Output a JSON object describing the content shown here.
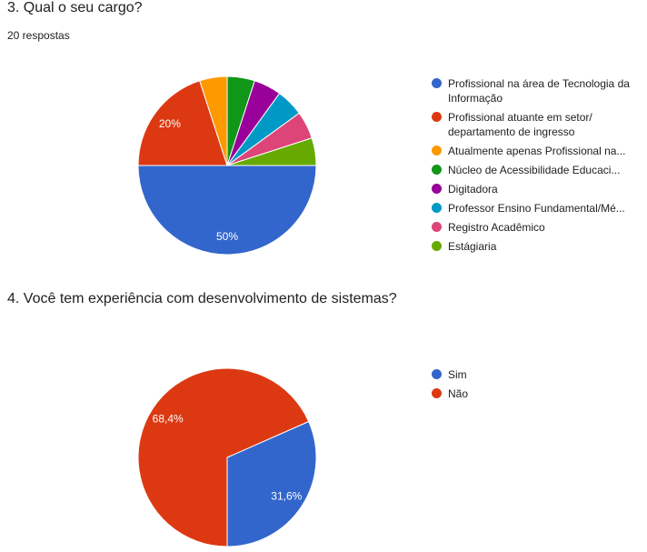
{
  "q3": {
    "title": "3. Qual o seu cargo?",
    "responses": "20 respostas"
  },
  "q4": {
    "title": "4. Você tem experiência com desenvolvimento de sistemas?"
  },
  "chart_data": [
    {
      "type": "pie",
      "title": "3. Qual o seu cargo?",
      "legend_position": "right",
      "slices": [
        {
          "label": "Profissional na área de Tecnologia da Informação",
          "value": 50,
          "color": "#3366cc",
          "data_label": "50%",
          "truncated": false
        },
        {
          "label": "Profissional atuante em setor/ departamento de ingresso",
          "value": 20,
          "color": "#dc3912",
          "data_label": "20%",
          "truncated": false
        },
        {
          "label": "Atualmente apenas Profissional na...",
          "value": 5,
          "color": "#ff9900",
          "data_label": "",
          "truncated": true
        },
        {
          "label": "Núcleo de Acessibilidade Educaci...",
          "value": 5,
          "color": "#109618",
          "data_label": "",
          "truncated": true
        },
        {
          "label": "Digitadora",
          "value": 5,
          "color": "#990099",
          "data_label": "",
          "truncated": false
        },
        {
          "label": "Professor Ensino Fundamental/Mé...",
          "value": 5,
          "color": "#0099c6",
          "data_label": "",
          "truncated": true
        },
        {
          "label": "Registro Acadêmico",
          "value": 5,
          "color": "#dd4477",
          "data_label": "",
          "truncated": false
        },
        {
          "label": "Estágiaria",
          "value": 5,
          "color": "#66aa00",
          "data_label": "",
          "truncated": false
        }
      ]
    },
    {
      "type": "pie",
      "title": "4. Você tem experiência com desenvolvimento de sistemas?",
      "legend_position": "right",
      "slices": [
        {
          "label": "Sim",
          "value": 31.6,
          "color": "#3366cc",
          "data_label": "31,6%",
          "truncated": false
        },
        {
          "label": "Não",
          "value": 68.4,
          "color": "#dc3912",
          "data_label": "68,4%",
          "truncated": false
        }
      ]
    }
  ]
}
